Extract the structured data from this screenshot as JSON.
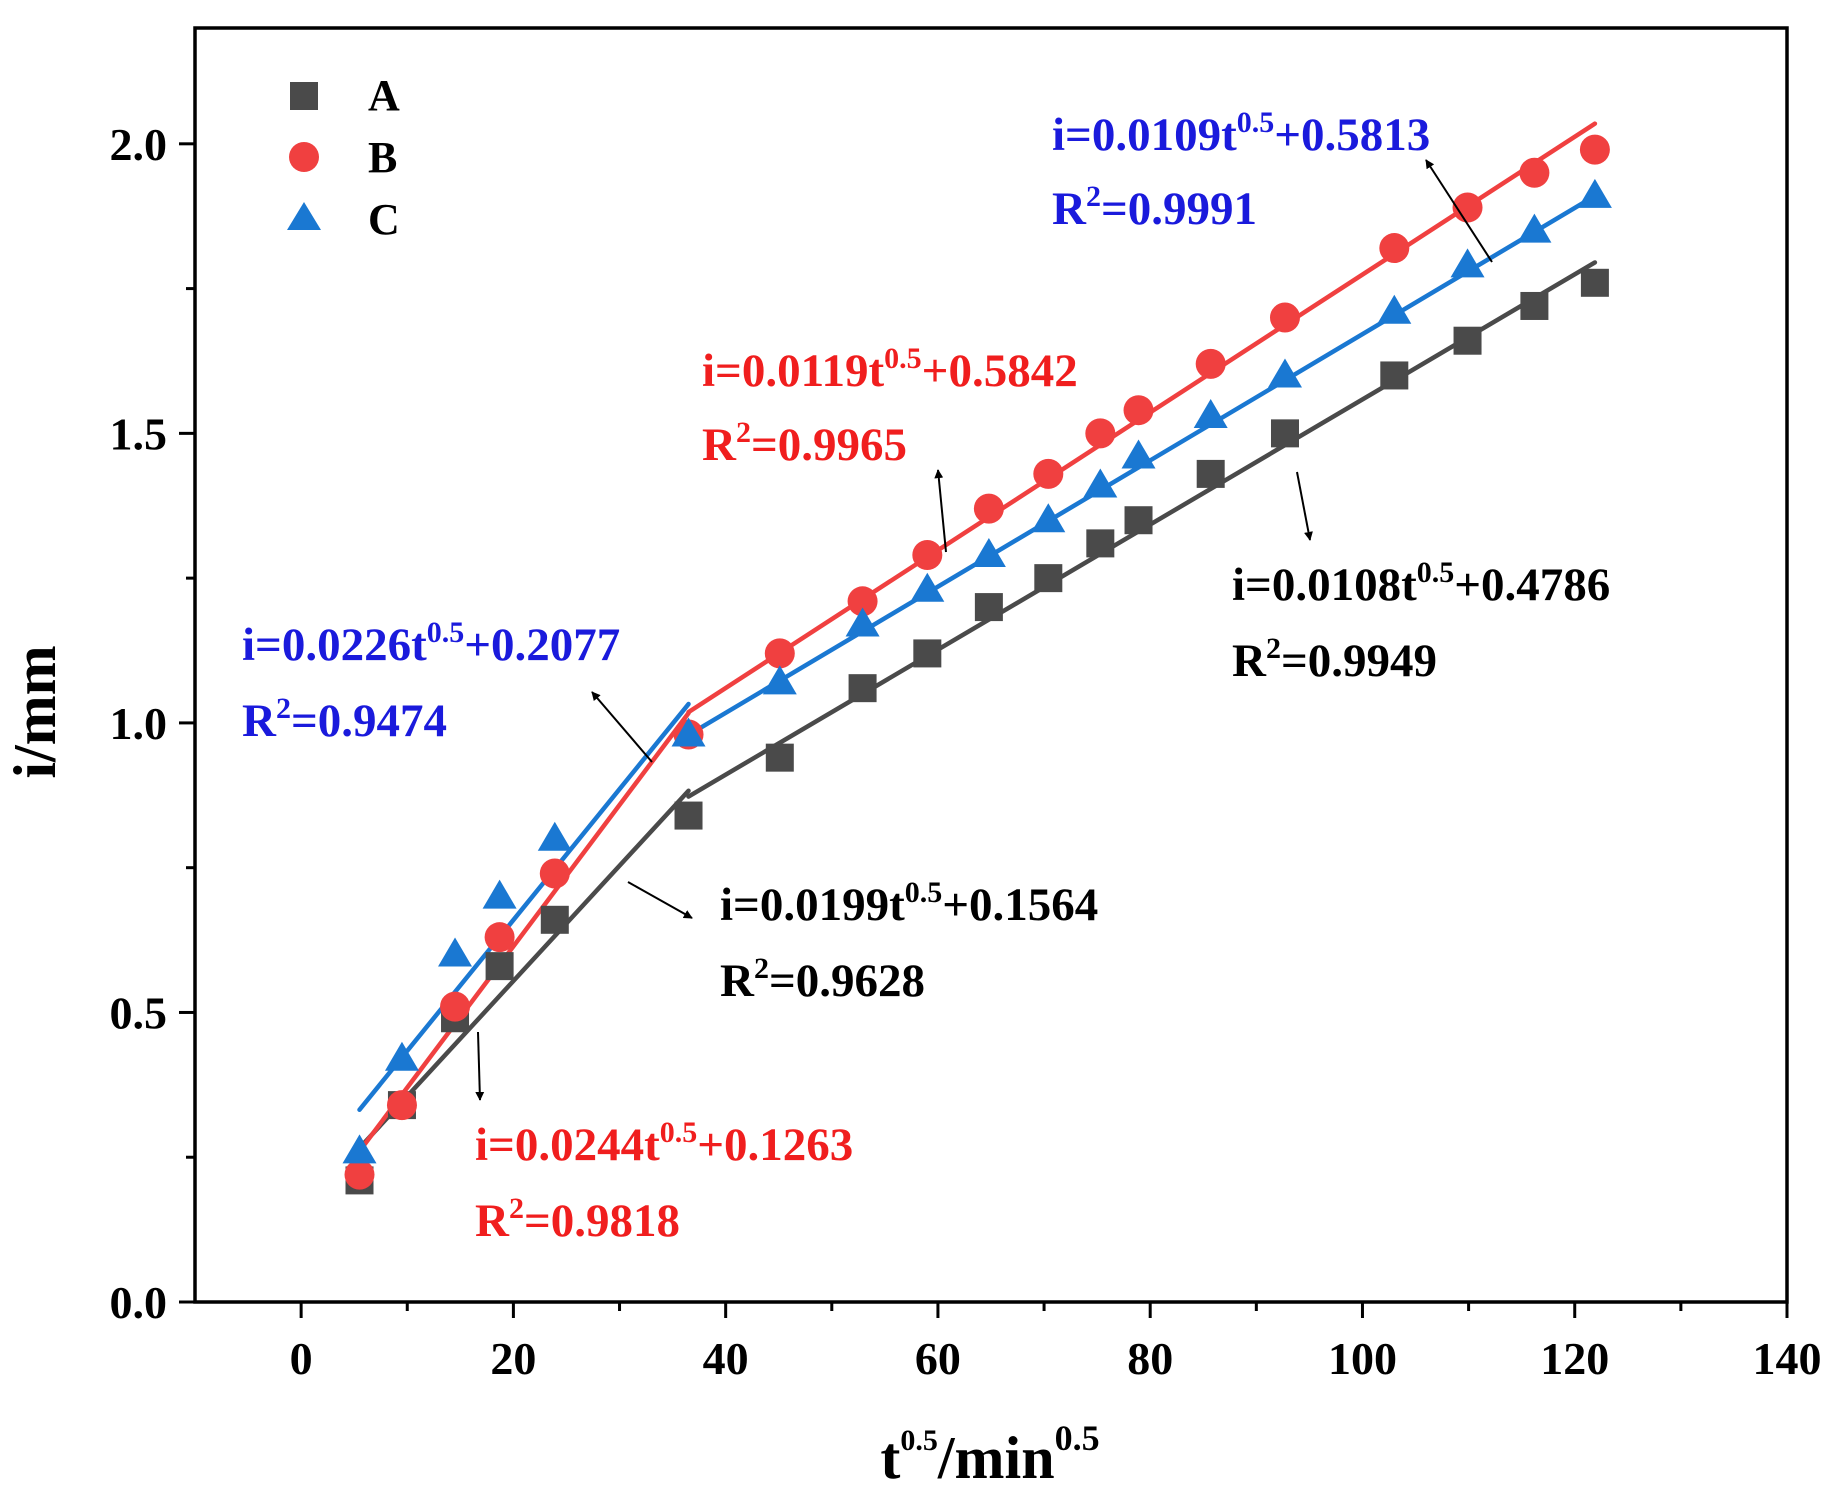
{
  "chart_data": {
    "type": "scatter",
    "xlabel": {
      "base": "t",
      "base_sup": "0.5",
      "rest": "/min",
      "rest_sup": "0.5"
    },
    "ylabel": "i/mm",
    "xlim": [
      -10,
      140
    ],
    "ylim": [
      0,
      2.2
    ],
    "xticks": [
      0,
      20,
      40,
      60,
      80,
      100,
      120,
      140
    ],
    "xtick_labels": [
      "0",
      "20",
      "40",
      "60",
      "80",
      "100",
      "120",
      "140"
    ],
    "yticks": [
      0.0,
      0.5,
      1.0,
      1.5,
      2.0
    ],
    "ytick_labels": [
      "0.0",
      "0.5",
      "1.0",
      "1.5",
      "2.0"
    ],
    "yminor": [
      0.25,
      0.75,
      1.25,
      1.75
    ],
    "legend_position": "top-left",
    "series": [
      {
        "name": "A",
        "marker": "square",
        "color": "#4a4a4a",
        "x": [
          5.5,
          9.5,
          14.5,
          18.7,
          23.9,
          36.5,
          45.1,
          52.9,
          59.0,
          64.8,
          70.4,
          75.3,
          78.9,
          85.7,
          92.7,
          103.0,
          109.9,
          116.2,
          121.9
        ],
        "y": [
          0.21,
          0.34,
          0.49,
          0.58,
          0.66,
          0.84,
          0.94,
          1.06,
          1.12,
          1.2,
          1.25,
          1.31,
          1.35,
          1.43,
          1.5,
          1.6,
          1.66,
          1.72,
          1.76
        ],
        "fits": [
          {
            "x_range": [
              5.5,
              36.5
            ],
            "slope": 0.0199,
            "intercept": 0.1564
          },
          {
            "x_range": [
              36.5,
              121.9
            ],
            "slope": 0.0108,
            "intercept": 0.4786
          }
        ]
      },
      {
        "name": "B",
        "marker": "circle",
        "color": "#f04040",
        "x": [
          5.5,
          9.5,
          14.5,
          18.7,
          23.9,
          36.5,
          45.1,
          52.9,
          59.0,
          64.8,
          70.4,
          75.3,
          78.9,
          85.7,
          92.7,
          103.0,
          109.9,
          116.2,
          121.9
        ],
        "y": [
          0.22,
          0.34,
          0.51,
          0.63,
          0.74,
          0.98,
          1.12,
          1.21,
          1.29,
          1.37,
          1.43,
          1.5,
          1.54,
          1.62,
          1.7,
          1.82,
          1.89,
          1.95,
          1.99
        ],
        "fits": [
          {
            "x_range": [
              5.5,
              36.5
            ],
            "slope": 0.0244,
            "intercept": 0.1263
          },
          {
            "x_range": [
              36.5,
              121.9
            ],
            "slope": 0.0119,
            "intercept": 0.5842
          }
        ]
      },
      {
        "name": "C",
        "marker": "triangle",
        "color": "#1a78d2",
        "x": [
          5.5,
          9.5,
          14.5,
          18.7,
          23.9,
          36.5,
          45.1,
          52.9,
          59.0,
          64.8,
          70.4,
          75.3,
          78.9,
          85.7,
          92.7,
          103.0,
          109.9,
          116.2,
          121.9
        ],
        "y": [
          0.26,
          0.42,
          0.6,
          0.7,
          0.8,
          0.98,
          1.07,
          1.17,
          1.23,
          1.29,
          1.35,
          1.41,
          1.46,
          1.53,
          1.6,
          1.71,
          1.79,
          1.85,
          1.91
        ],
        "fits": [
          {
            "x_range": [
              5.5,
              36.5
            ],
            "slope": 0.0226,
            "intercept": 0.2077
          },
          {
            "x_range": [
              36.5,
              121.9
            ],
            "slope": 0.0109,
            "intercept": 0.5813
          }
        ]
      }
    ],
    "annotations": [
      {
        "id": "c-seg2",
        "series": "C",
        "color": "#1a1adc",
        "eq_pre": "i=0.0109t",
        "eq_sup": "0.5",
        "eq_post": "+0.5813",
        "r2": "=0.9991"
      },
      {
        "id": "b-seg2",
        "series": "B",
        "color": "#f01e1e",
        "eq_pre": "i=0.0119t",
        "eq_sup": "0.5",
        "eq_post": "+0.5842",
        "r2": "=0.9965"
      },
      {
        "id": "a-seg2",
        "series": "A",
        "color": "#000000",
        "eq_pre": "i=0.0108t",
        "eq_sup": "0.5",
        "eq_post": "+0.4786",
        "r2": "=0.9949"
      },
      {
        "id": "c-seg1",
        "series": "C",
        "color": "#1a1adc",
        "eq_pre": "i=0.0226t",
        "eq_sup": "0.5",
        "eq_post": "+0.2077",
        "r2": "=0.9474"
      },
      {
        "id": "a-seg1",
        "series": "A",
        "color": "#000000",
        "eq_pre": "i=0.0199t",
        "eq_sup": "0.5",
        "eq_post": "+0.1564",
        "r2": "=0.9628"
      },
      {
        "id": "b-seg1",
        "series": "B",
        "color": "#f01e1e",
        "eq_pre": "i=0.0244t",
        "eq_sup": "0.5",
        "eq_post": "+0.1263",
        "r2": "=0.9818"
      }
    ],
    "r2_symbol": "R",
    "r2_sup": "2"
  }
}
